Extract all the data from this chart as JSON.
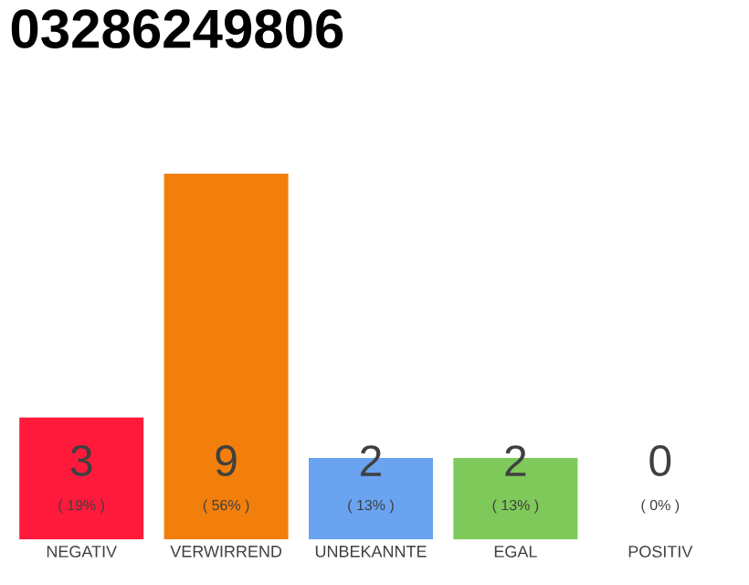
{
  "chart_data": {
    "type": "bar",
    "title": "03286249806",
    "categories": [
      "NEGATIV",
      "VERWIRREND",
      "UNBEKANNTE",
      "EGAL",
      "POSITIV"
    ],
    "values": [
      3,
      9,
      2,
      2,
      0
    ],
    "colors": [
      "#ff1a3c",
      "#f27f0c",
      "#6aa3f0",
      "#7ec95a",
      "#cccccc"
    ],
    "value_labels": [
      "3",
      "9",
      "2",
      "2",
      "0"
    ],
    "annotations": [
      "( 19% )",
      "( 56% )",
      "( 13% )",
      "( 13% )",
      "( 0% )"
    ]
  }
}
